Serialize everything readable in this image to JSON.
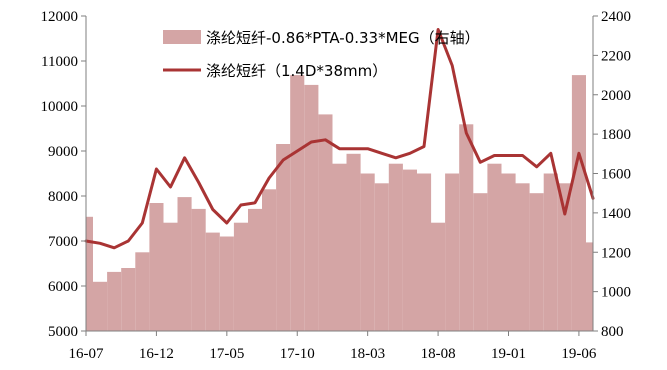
{
  "chart_data": {
    "type": "area+line",
    "title": "",
    "xlabel": "",
    "ylabel": "",
    "x_tick_labels": [
      "16-07",
      "16-12",
      "17-05",
      "17-10",
      "18-03",
      "18-08",
      "19-01",
      "19-06"
    ],
    "left_axis": {
      "ylim": [
        5000,
        12000
      ],
      "ticks": [
        5000,
        6000,
        7000,
        8000,
        9000,
        10000,
        11000,
        12000
      ]
    },
    "right_axis": {
      "ylim": [
        800,
        2400
      ],
      "ticks": [
        800,
        1000,
        1200,
        1400,
        1600,
        1800,
        2000,
        2200,
        2400
      ]
    },
    "grid": false,
    "legend_position": "top",
    "series": [
      {
        "name": "涤纶短纤-0.86*PTA-0.33*MEG（右轴）",
        "kind": "area",
        "axis": "right",
        "color": "#d4a5a5",
        "x": [
          "16-07",
          "16-08",
          "16-09",
          "16-10",
          "16-11",
          "16-12",
          "17-01",
          "17-02",
          "17-03",
          "17-04",
          "17-05",
          "17-06",
          "17-07",
          "17-08",
          "17-09",
          "17-10",
          "17-11",
          "17-12",
          "18-01",
          "18-02",
          "18-03",
          "18-04",
          "18-05",
          "18-06",
          "18-07",
          "18-08",
          "18-09",
          "18-10",
          "18-11",
          "18-12",
          "19-01",
          "19-02",
          "19-03",
          "19-04",
          "19-05",
          "19-06",
          "19-07"
        ],
        "values": [
          1380,
          1050,
          1100,
          1120,
          1200,
          1450,
          1350,
          1480,
          1420,
          1300,
          1280,
          1350,
          1420,
          1520,
          1750,
          2100,
          2050,
          1900,
          1650,
          1700,
          1600,
          1550,
          1650,
          1620,
          1600,
          1350,
          1600,
          1850,
          1500,
          1650,
          1600,
          1550,
          1500,
          1600,
          1550,
          2100,
          1250
        ]
      },
      {
        "name": "涤纶短纤（1.4D*38mm）",
        "kind": "line",
        "axis": "left",
        "color": "#a93434",
        "x": [
          "16-07",
          "16-08",
          "16-09",
          "16-10",
          "16-11",
          "16-12",
          "17-01",
          "17-02",
          "17-03",
          "17-04",
          "17-05",
          "17-06",
          "17-07",
          "17-08",
          "17-09",
          "17-10",
          "17-11",
          "17-12",
          "18-01",
          "18-02",
          "18-03",
          "18-04",
          "18-05",
          "18-06",
          "18-07",
          "18-08",
          "18-09",
          "18-10",
          "18-11",
          "18-12",
          "19-01",
          "19-02",
          "19-03",
          "19-04",
          "19-05",
          "19-06",
          "19-07"
        ],
        "values": [
          7000,
          6950,
          6850,
          7000,
          7400,
          8600,
          8200,
          8850,
          8300,
          7700,
          7400,
          7800,
          7850,
          8400,
          8800,
          9000,
          9200,
          9250,
          9050,
          9050,
          9050,
          8950,
          8850,
          8950,
          9100,
          11700,
          10900,
          9400,
          8750,
          8900,
          8900,
          8900,
          8650,
          8950,
          7600,
          8950,
          7950
        ]
      }
    ]
  }
}
